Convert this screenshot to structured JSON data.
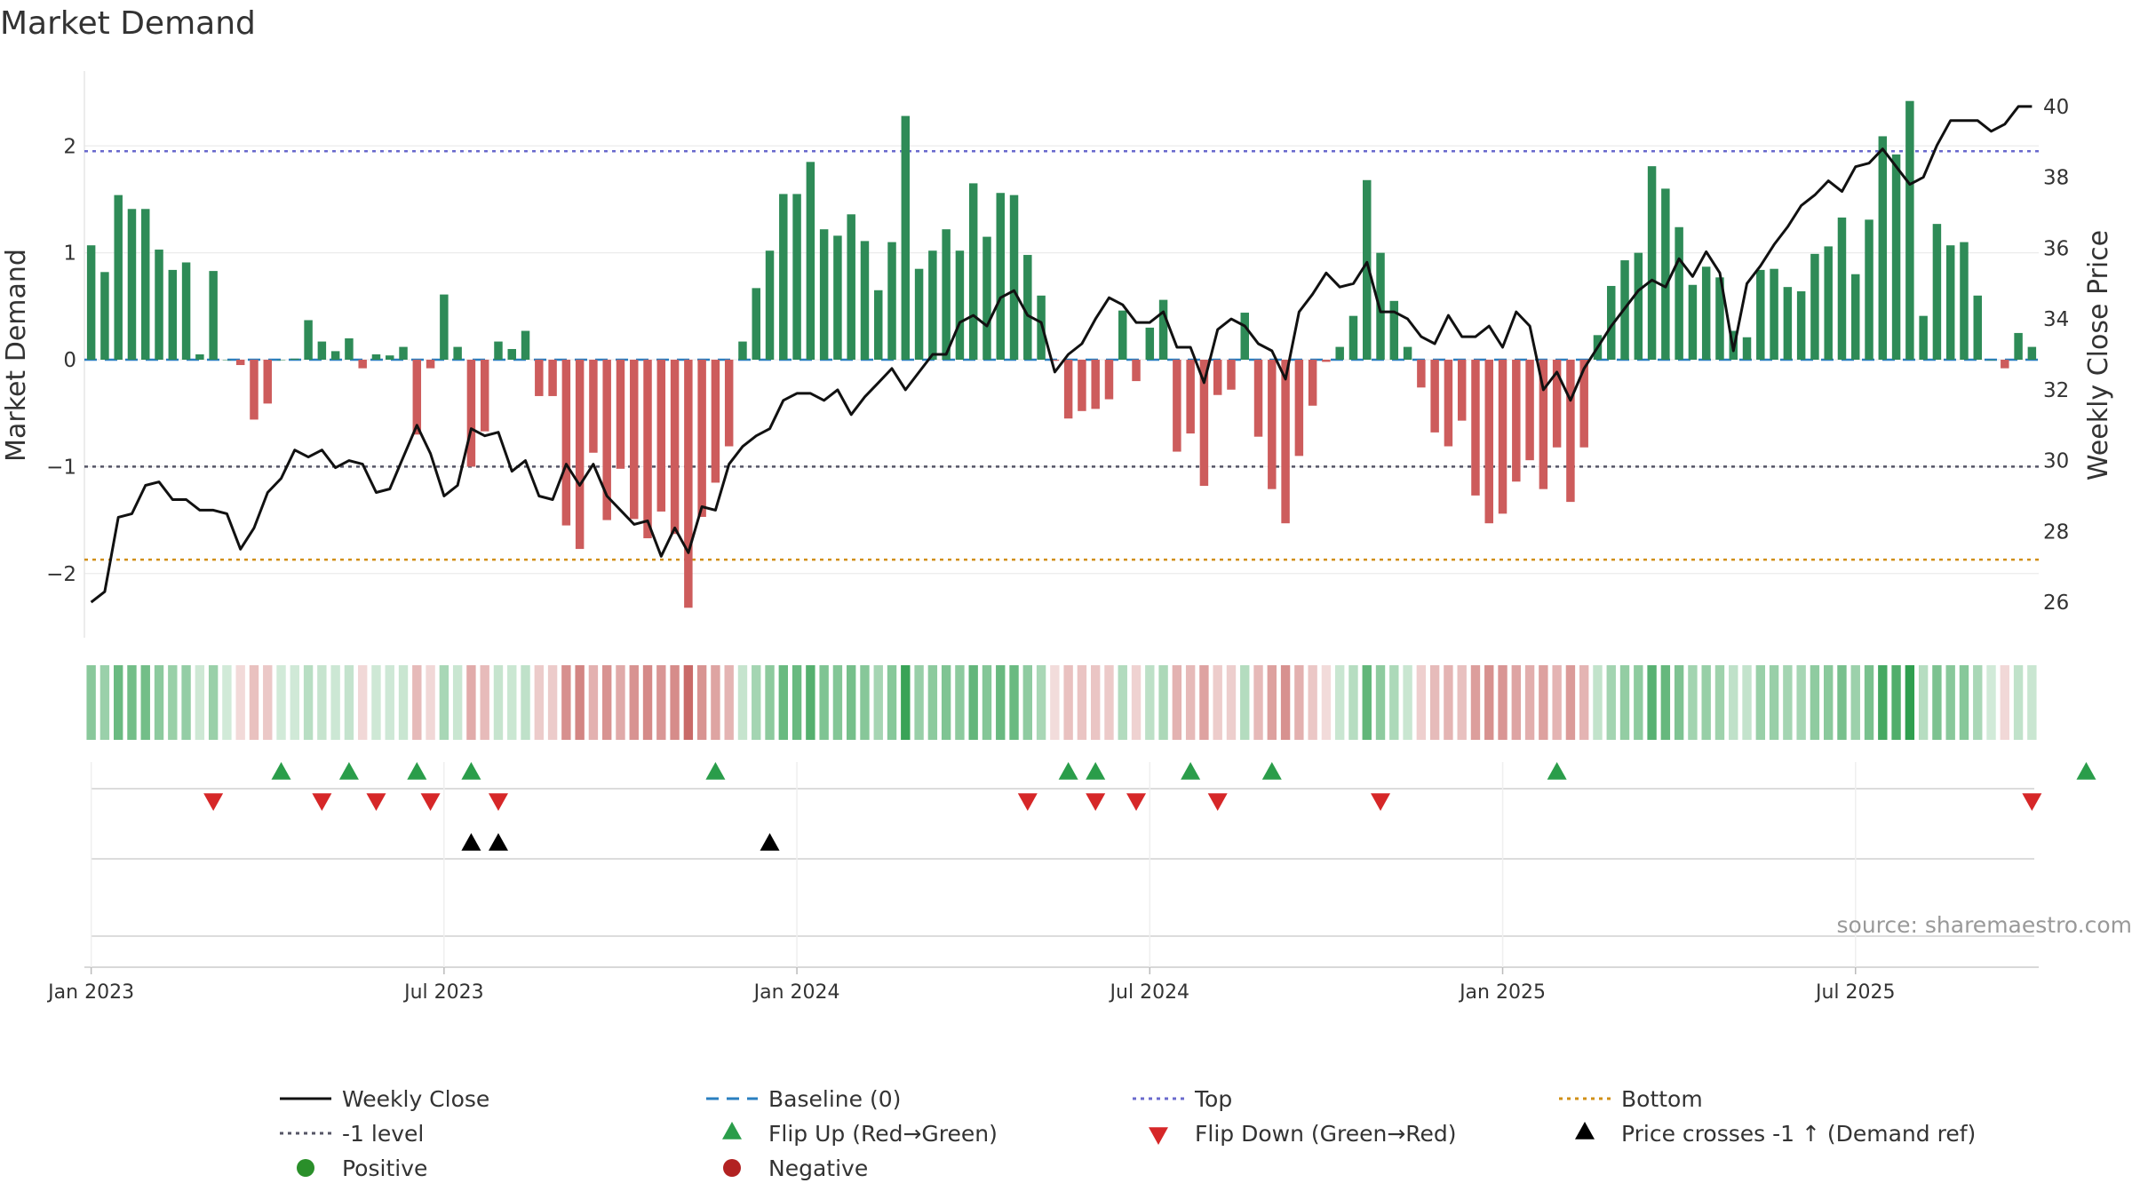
{
  "chart_data": {
    "type": "bar+line",
    "title": "Market Demand",
    "ylabel_left": "Market Demand",
    "ylabel_right": "Weekly Close Price",
    "ylim_left": [
      -2.6,
      2.7
    ],
    "ylim_right": [
      25.0,
      41.0
    ],
    "yticks_left": [
      {
        "v": 2,
        "label": "2"
      },
      {
        "v": 1,
        "label": "1"
      },
      {
        "v": 0,
        "label": "0"
      },
      {
        "v": -1,
        "label": "−1"
      },
      {
        "v": -2,
        "label": "−2"
      }
    ],
    "yticks_right": [
      {
        "v": 40,
        "label": "40"
      },
      {
        "v": 38,
        "label": "38"
      },
      {
        "v": 36,
        "label": "36"
      },
      {
        "v": 34,
        "label": "34"
      },
      {
        "v": 32,
        "label": "32"
      },
      {
        "v": 30,
        "label": "30"
      },
      {
        "v": 28,
        "label": "28"
      },
      {
        "v": 26,
        "label": "26"
      }
    ],
    "xticks": [
      {
        "week": 1,
        "label": "Jan 2023"
      },
      {
        "week": 27,
        "label": "Jul 2023"
      },
      {
        "week": 53,
        "label": "Jan 2024"
      },
      {
        "week": 79,
        "label": "Jul 2024"
      },
      {
        "week": 105,
        "label": "Jan 2025"
      },
      {
        "week": 131,
        "label": "Jul 2025"
      }
    ],
    "levels": {
      "top": 1.95,
      "minus_one": -1.0,
      "bottom": -1.87,
      "baseline": 0
    },
    "demand": [
      1.07,
      0.82,
      1.54,
      1.41,
      1.41,
      1.03,
      0.84,
      0.91,
      0.05,
      0.83,
      0.0,
      -0.05,
      -0.56,
      -0.41,
      0.0,
      0.01,
      0.37,
      0.17,
      0.08,
      0.2,
      -0.08,
      0.05,
      0.04,
      0.12,
      -0.7,
      -0.08,
      0.61,
      0.12,
      -1.0,
      -0.67,
      0.17,
      0.1,
      0.27,
      -0.34,
      -0.34,
      -1.55,
      -1.77,
      -0.87,
      -1.5,
      -1.02,
      -1.49,
      -1.67,
      -1.42,
      -1.63,
      -2.32,
      -1.47,
      -1.15,
      -0.81,
      0.17,
      0.67,
      1.02,
      1.55,
      1.55,
      1.85,
      1.22,
      1.16,
      1.36,
      1.11,
      0.65,
      1.1,
      2.28,
      0.85,
      1.02,
      1.22,
      1.02,
      1.65,
      1.15,
      1.56,
      1.54,
      0.98,
      0.6,
      -0.01,
      -0.55,
      -0.48,
      -0.46,
      -0.37,
      0.46,
      -0.2,
      0.3,
      0.56,
      -0.86,
      -0.69,
      -1.18,
      -0.33,
      -0.28,
      0.44,
      -0.72,
      -1.21,
      -1.53,
      -0.9,
      -0.43,
      -0.02,
      0.12,
      0.41,
      1.68,
      1.0,
      0.55,
      0.12,
      -0.26,
      -0.68,
      -0.81,
      -0.57,
      -1.27,
      -1.53,
      -1.44,
      -1.14,
      -0.94,
      -1.21,
      -0.82,
      -1.33,
      -0.82,
      0.23,
      0.69,
      0.93,
      1.0,
      1.81,
      1.6,
      1.24,
      0.7,
      0.87,
      0.77,
      0.27,
      0.21,
      0.84,
      0.85,
      0.68,
      0.64,
      0.99,
      1.06,
      1.33,
      0.8,
      1.31,
      2.09,
      1.92,
      2.42,
      0.41,
      1.27,
      1.07,
      1.1,
      0.6,
      0.0,
      -0.08,
      0.25,
      0.12
    ],
    "close": [
      26.0,
      26.3,
      28.4,
      28.5,
      29.3,
      29.4,
      28.9,
      28.9,
      28.6,
      28.6,
      28.5,
      27.5,
      28.1,
      29.1,
      29.5,
      30.3,
      30.1,
      30.3,
      29.8,
      30.0,
      29.9,
      29.1,
      29.2,
      30.1,
      31.0,
      30.2,
      29.0,
      29.3,
      30.9,
      30.7,
      30.8,
      29.7,
      30.0,
      29.0,
      28.9,
      29.9,
      29.3,
      29.9,
      29.0,
      28.6,
      28.2,
      28.3,
      27.3,
      28.1,
      27.4,
      28.7,
      28.6,
      29.9,
      30.4,
      30.7,
      30.9,
      31.7,
      31.9,
      31.9,
      31.7,
      32.0,
      31.3,
      31.8,
      32.2,
      32.6,
      32.0,
      32.5,
      33.0,
      33.0,
      33.9,
      34.1,
      33.8,
      34.6,
      34.8,
      34.1,
      33.9,
      32.5,
      33.0,
      33.3,
      34.0,
      34.6,
      34.4,
      33.9,
      33.9,
      34.2,
      33.2,
      33.2,
      32.2,
      33.7,
      34.0,
      33.8,
      33.3,
      33.1,
      32.3,
      34.2,
      34.7,
      35.3,
      34.9,
      35.0,
      35.6,
      34.2,
      34.2,
      34.0,
      33.5,
      33.3,
      34.1,
      33.5,
      33.5,
      33.8,
      33.2,
      34.2,
      33.8,
      32.0,
      32.5,
      31.7,
      32.6,
      33.2,
      33.8,
      34.3,
      34.8,
      35.1,
      34.9,
      35.7,
      35.2,
      35.9,
      35.3,
      33.1,
      35.0,
      35.5,
      36.1,
      36.6,
      37.2,
      37.5,
      37.9,
      37.6,
      38.3,
      38.4,
      38.8,
      38.3,
      37.8,
      38.0,
      38.9,
      39.6,
      39.6,
      39.6,
      39.3,
      39.5,
      40.0,
      40.0
    ],
    "flip_up_weeks": [
      15,
      20,
      25,
      29,
      47,
      73,
      75,
      82,
      88,
      109,
      148
    ],
    "flip_down_weeks": [
      10,
      18,
      22,
      26,
      31,
      70,
      75,
      78,
      84,
      96,
      144
    ],
    "price_cross_weeks": [
      29,
      31,
      51
    ],
    "source": "source: sharemaestro.com",
    "legend": [
      {
        "key": "close",
        "label": "Weekly Close"
      },
      {
        "key": "baseline",
        "label": "Baseline (0)"
      },
      {
        "key": "top",
        "label": "Top"
      },
      {
        "key": "bottom",
        "label": "Bottom"
      },
      {
        "key": "minus1",
        "label": "-1 level"
      },
      {
        "key": "flipup",
        "label": "Flip Up (Red→Green)"
      },
      {
        "key": "flipdown",
        "label": "Flip Down (Green→Red)"
      },
      {
        "key": "cross",
        "label": "Price crosses -1 ↑ (Demand ref)"
      },
      {
        "key": "positive",
        "label": "Positive"
      },
      {
        "key": "negative",
        "label": "Negative"
      }
    ],
    "colors": {
      "positive": "#2e8b57",
      "negative": "#cd5c5c",
      "close": "#111111",
      "top": "#6a6acd",
      "bottom": "#d18f16",
      "minus1": "#555566",
      "baseline": "#2a7fc0",
      "flip_up": "#2a9d4a",
      "flip_down": "#d62728",
      "cross": "#000000",
      "legend_positive": "#2a8f2a",
      "legend_negative": "#b22222"
    }
  }
}
